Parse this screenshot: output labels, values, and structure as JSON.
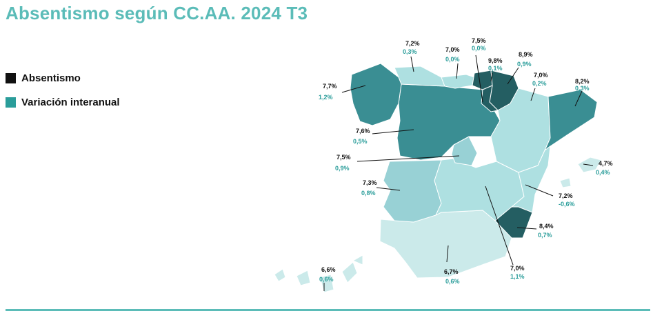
{
  "title": "Absentismo según CC.AA. 2024 T3",
  "legend": [
    {
      "label": "Absentismo",
      "color": "#111111"
    },
    {
      "label": "Variación interanual",
      "color": "#2a9d9a"
    }
  ],
  "colors": {
    "accent": "#5bbcb8",
    "dark": "#245e62",
    "mid": "#3a8e93",
    "light": "#98d1d5",
    "lighter": "#aee0e1",
    "lightest": "#cbeaea"
  },
  "regions": [
    {
      "id": "galicia",
      "absentismo": "7,7%",
      "variacion": "1,2%",
      "shade": "mid"
    },
    {
      "id": "asturias",
      "absentismo": "7,2%",
      "variacion": "0,3%",
      "shade": "lighter"
    },
    {
      "id": "cantabria",
      "absentismo": "7,0%",
      "variacion": "0,0%",
      "shade": "lighter"
    },
    {
      "id": "pais-vasco",
      "absentismo": "7,5%",
      "variacion": "0,0%",
      "shade": "dark"
    },
    {
      "id": "navarra",
      "absentismo": "9,8%",
      "variacion": "0,1%",
      "shade": "dark"
    },
    {
      "id": "la-rioja",
      "absentismo": "8,9%",
      "variacion": "0,9%",
      "shade": "dark"
    },
    {
      "id": "aragon",
      "absentismo": "7,0%",
      "variacion": "0,2%",
      "shade": "lighter"
    },
    {
      "id": "cataluna",
      "absentismo": "8,2%",
      "variacion": "0,3%",
      "shade": "mid"
    },
    {
      "id": "castilla-leon",
      "absentismo": "7,6%",
      "variacion": "0,5%",
      "shade": "mid"
    },
    {
      "id": "madrid",
      "absentismo": "7,5%",
      "variacion": "0,9%",
      "shade": "light"
    },
    {
      "id": "baleares",
      "absentismo": "4,7%",
      "variacion": "0,4%",
      "shade": "lightest"
    },
    {
      "id": "extremadura",
      "absentismo": "7,3%",
      "variacion": "0,8%",
      "shade": "light"
    },
    {
      "id": "comunidad-valenciana",
      "absentismo": "7,2%",
      "variacion": "-0,6%",
      "shade": "lighter"
    },
    {
      "id": "murcia",
      "absentismo": "8,4%",
      "variacion": "0,7%",
      "shade": "dark"
    },
    {
      "id": "castilla-la-mancha",
      "absentismo": "7,0%",
      "variacion": "1,1%",
      "shade": "lighter"
    },
    {
      "id": "andalucia",
      "absentismo": "6,7%",
      "variacion": "0,6%",
      "shade": "lightest"
    },
    {
      "id": "canarias",
      "absentismo": "6,6%",
      "variacion": "0,6%",
      "shade": "lightest"
    }
  ]
}
